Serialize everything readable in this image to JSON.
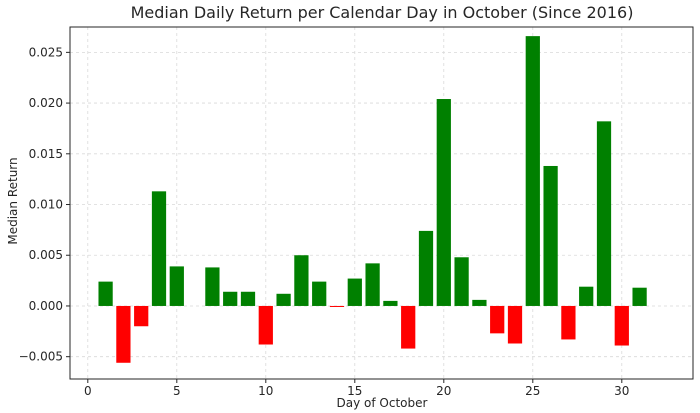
{
  "chart_data": {
    "type": "bar",
    "title": "Median Daily Return per Calendar Day in October (Since 2016)",
    "xlabel": "Day of October",
    "ylabel": "Median Return",
    "xlim": [
      -1,
      34
    ],
    "ylim": [
      -0.0072,
      0.0275
    ],
    "xticks": [
      0,
      5,
      10,
      15,
      20,
      25,
      30
    ],
    "yticks": [
      -0.005,
      0.0,
      0.005,
      0.01,
      0.015,
      0.02,
      0.025
    ],
    "ytick_labels": [
      "−0.005",
      "0.000",
      "0.005",
      "0.010",
      "0.015",
      "0.020",
      "0.025"
    ],
    "grid": true,
    "positive_color": "#008000",
    "negative_color": "#ff0000",
    "x": [
      1,
      2,
      3,
      4,
      5,
      7,
      8,
      9,
      10,
      11,
      12,
      13,
      14,
      15,
      16,
      17,
      18,
      19,
      20,
      21,
      22,
      23,
      24,
      25,
      26,
      27,
      28,
      29,
      30,
      31
    ],
    "values": [
      0.0024,
      -0.0056,
      -0.002,
      0.0113,
      0.0039,
      0.0038,
      0.0014,
      0.0014,
      -0.0038,
      0.0012,
      0.005,
      0.0024,
      -0.0001,
      0.0027,
      0.0042,
      0.0005,
      -0.0042,
      0.0074,
      0.0204,
      0.0048,
      0.0006,
      -0.0027,
      -0.0037,
      0.0266,
      0.0138,
      -0.0033,
      0.0019,
      0.0182,
      -0.0039,
      0.0018
    ]
  }
}
